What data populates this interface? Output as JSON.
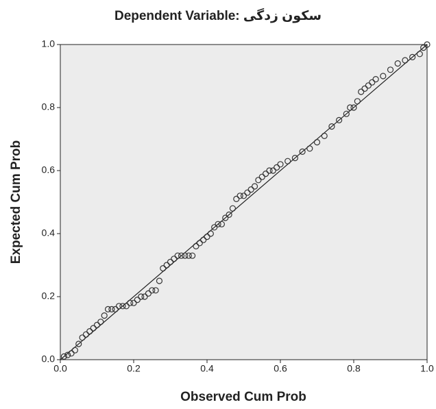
{
  "chart_data": {
    "type": "scatter",
    "title": "Dependent Variable: سکون زدگی",
    "xlabel": "Observed Cum Prob",
    "ylabel": "Expected Cum Prob",
    "x": [
      0.01,
      0.02,
      0.03,
      0.04,
      0.05,
      0.06,
      0.07,
      0.08,
      0.09,
      0.1,
      0.11,
      0.12,
      0.13,
      0.14,
      0.15,
      0.16,
      0.17,
      0.18,
      0.19,
      0.2,
      0.21,
      0.22,
      0.23,
      0.24,
      0.25,
      0.26,
      0.27,
      0.28,
      0.29,
      0.3,
      0.31,
      0.32,
      0.33,
      0.34,
      0.35,
      0.36,
      0.37,
      0.38,
      0.39,
      0.4,
      0.41,
      0.42,
      0.43,
      0.44,
      0.45,
      0.46,
      0.47,
      0.48,
      0.49,
      0.5,
      0.51,
      0.52,
      0.53,
      0.54,
      0.55,
      0.56,
      0.57,
      0.58,
      0.59,
      0.6,
      0.62,
      0.64,
      0.66,
      0.68,
      0.7,
      0.72,
      0.74,
      0.76,
      0.78,
      0.79,
      0.8,
      0.81,
      0.82,
      0.83,
      0.84,
      0.85,
      0.86,
      0.88,
      0.9,
      0.92,
      0.94,
      0.96,
      0.98,
      0.99,
      1.0
    ],
    "values": [
      0.01,
      0.015,
      0.02,
      0.03,
      0.05,
      0.07,
      0.08,
      0.09,
      0.1,
      0.11,
      0.12,
      0.14,
      0.16,
      0.16,
      0.16,
      0.17,
      0.17,
      0.17,
      0.18,
      0.18,
      0.19,
      0.2,
      0.2,
      0.21,
      0.22,
      0.22,
      0.25,
      0.29,
      0.3,
      0.31,
      0.32,
      0.33,
      0.33,
      0.33,
      0.33,
      0.33,
      0.36,
      0.37,
      0.38,
      0.39,
      0.4,
      0.42,
      0.43,
      0.43,
      0.45,
      0.46,
      0.48,
      0.51,
      0.52,
      0.52,
      0.53,
      0.54,
      0.55,
      0.57,
      0.58,
      0.59,
      0.6,
      0.6,
      0.61,
      0.62,
      0.63,
      0.64,
      0.66,
      0.67,
      0.69,
      0.71,
      0.74,
      0.76,
      0.78,
      0.8,
      0.8,
      0.82,
      0.85,
      0.86,
      0.87,
      0.88,
      0.89,
      0.9,
      0.92,
      0.94,
      0.95,
      0.96,
      0.97,
      0.99,
      1.0
    ],
    "color": "#333333",
    "reference_line": true,
    "xlim": [
      0,
      1
    ],
    "ylim": [
      0,
      1
    ],
    "xticks": [
      {
        "value": 0,
        "label": "0.0"
      },
      0.2,
      0.4,
      0.6,
      0.8,
      {
        "value": 1,
        "label": "1.0"
      }
    ],
    "yticks": [
      {
        "value": 0,
        "label": "0.0"
      },
      0.2,
      0.4,
      0.6,
      0.8,
      {
        "value": 1,
        "label": "1.0"
      }
    ]
  }
}
